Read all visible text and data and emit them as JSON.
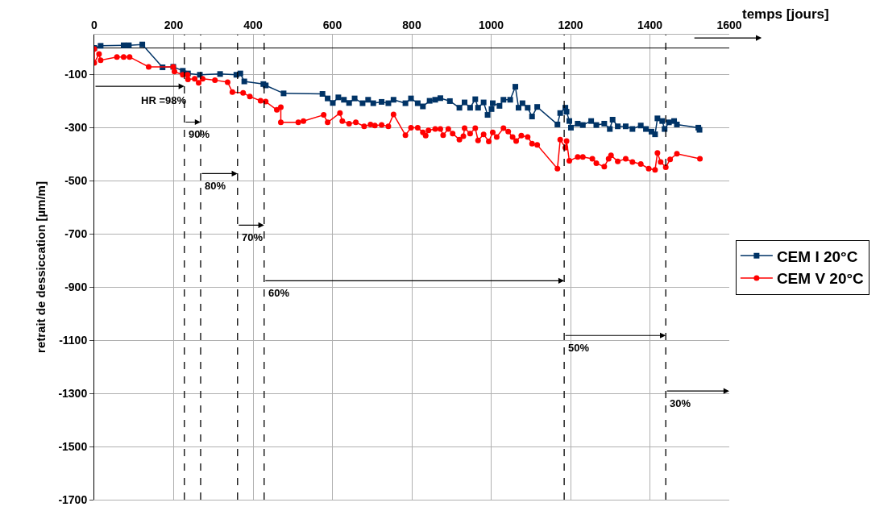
{
  "chart_data": {
    "type": "line",
    "xlabel": "temps [jours]",
    "ylabel": "retrait de dessiccation [µm/m]",
    "xlim": [
      0,
      1600
    ],
    "xticks": [
      0,
      200,
      400,
      600,
      800,
      1000,
      1200,
      1400,
      1600
    ],
    "ylim": [
      -1700,
      50
    ],
    "yticks": [
      -100,
      -300,
      -500,
      -700,
      -900,
      -1100,
      -1300,
      -1500,
      -1700
    ],
    "grid": true,
    "legend": "right",
    "line_style": "solid",
    "series": [
      {
        "name": "CEM I 20°C",
        "color": "#003366",
        "marker": "square",
        "x": [
          0,
          16,
          74,
          87,
          121,
          172,
          199,
          223,
          225,
          236,
          266,
          317,
          358,
          368,
          378,
          426,
          432,
          477,
          575,
          588,
          601,
          615,
          629,
          642,
          656,
          676,
          690,
          703,
          724,
          741,
          754,
          784,
          798,
          815,
          828,
          845,
          859,
          872,
          896,
          920,
          933,
          947,
          960,
          967,
          981,
          991,
          1001,
          1004,
          1021,
          1031,
          1048,
          1061,
          1069,
          1079,
          1092,
          1103,
          1116,
          1167,
          1174,
          1187,
          1190,
          1197,
          1201,
          1218,
          1231,
          1252,
          1265,
          1285,
          1299,
          1306,
          1319,
          1339,
          1356,
          1377,
          1390,
          1404,
          1413,
          1419,
          1431,
          1437,
          1448,
          1461,
          1468,
          1522,
          1525
        ],
        "values": [
          0,
          8,
          10,
          10,
          13,
          -73,
          -71,
          -86,
          -96,
          -96,
          -101,
          -98,
          -101,
          -96,
          -126,
          -136,
          -141,
          -171,
          -173,
          -190,
          -207,
          -186,
          -195,
          -207,
          -190,
          -208,
          -195,
          -208,
          -203,
          -208,
          -195,
          -208,
          -190,
          -208,
          -220,
          -199,
          -195,
          -189,
          -200,
          -225,
          -205,
          -225,
          -193,
          -225,
          -205,
          -252,
          -230,
          -208,
          -218,
          -195,
          -195,
          -146,
          -225,
          -208,
          -225,
          -258,
          -222,
          -288,
          -245,
          -225,
          -240,
          -275,
          -300,
          -285,
          -290,
          -275,
          -290,
          -285,
          -305,
          -270,
          -295,
          -295,
          -305,
          -292,
          -305,
          -315,
          -325,
          -265,
          -275,
          -305,
          -280,
          -275,
          -288,
          -300,
          -308
        ]
      },
      {
        "name": "CEM V 20°C",
        "color": "#ff0000",
        "marker": "circle",
        "x": [
          0,
          0,
          12,
          16,
          57,
          74,
          89,
          137,
          199,
          202,
          223,
          235,
          236,
          253,
          263,
          273,
          304,
          336,
          348,
          375,
          392,
          419,
          432,
          460,
          470,
          470,
          514,
          527,
          578,
          588,
          619,
          625,
          642,
          659,
          680,
          696,
          707,
          724,
          741,
          754,
          784,
          798,
          815,
          828,
          835,
          842,
          859,
          872,
          879,
          892,
          903,
          920,
          930,
          933,
          947,
          960,
          967,
          981,
          994,
          1004,
          1014,
          1031,
          1043,
          1054,
          1063,
          1076,
          1092,
          1103,
          1116,
          1167,
          1174,
          1187,
          1190,
          1197,
          1218,
          1231,
          1255,
          1265,
          1285,
          1296,
          1302,
          1319,
          1339,
          1356,
          1377,
          1397,
          1413,
          1419,
          1427,
          1440,
          1451,
          1468,
          1526
        ],
        "values": [
          -4,
          -56,
          -23,
          -46,
          -34,
          -34,
          -34,
          -71,
          -71,
          -89,
          -101,
          -101,
          -118,
          -116,
          -131,
          -116,
          -121,
          -129,
          -166,
          -169,
          -183,
          -199,
          -202,
          -233,
          -223,
          -280,
          -280,
          -275,
          -252,
          -280,
          -245,
          -275,
          -285,
          -280,
          -295,
          -288,
          -292,
          -290,
          -295,
          -250,
          -328,
          -300,
          -300,
          -318,
          -330,
          -310,
          -305,
          -305,
          -328,
          -305,
          -322,
          -345,
          -332,
          -302,
          -322,
          -302,
          -348,
          -325,
          -352,
          -318,
          -335,
          -302,
          -315,
          -335,
          -350,
          -330,
          -335,
          -360,
          -365,
          -454,
          -345,
          -375,
          -350,
          -425,
          -410,
          -410,
          -417,
          -434,
          -447,
          -417,
          -404,
          -427,
          -417,
          -429,
          -437,
          -454,
          -459,
          -395,
          -429,
          -449,
          -419,
          -398,
          -417
        ]
      }
    ],
    "ref_lines": [
      {
        "axis": "x",
        "value": 227,
        "line_style": "dashed",
        "color": "#000000"
      },
      {
        "axis": "x",
        "value": 268,
        "line_style": "dashed",
        "color": "#000000"
      },
      {
        "axis": "x",
        "value": 361,
        "line_style": "dashed",
        "color": "#000000"
      },
      {
        "axis": "x",
        "value": 428,
        "line_style": "dashed",
        "color": "#000000"
      },
      {
        "axis": "x",
        "value": 1184,
        "line_style": "dashed",
        "color": "#000000"
      },
      {
        "axis": "x",
        "value": 1440,
        "line_style": "dashed",
        "color": "#000000"
      }
    ],
    "annotations": [
      "HR =98%",
      {
        "text": "90%",
        "x": 227,
        "y": -279
      },
      {
        "text": "80%",
        "x": 268,
        "y": -473
      },
      {
        "text": "70%",
        "x": 361,
        "y": -667
      },
      {
        "text": "60%",
        "x": 428,
        "y": -876
      },
      {
        "text": "50%",
        "x": 1184,
        "y": -1082
      },
      {
        "text": "30%",
        "x": 1440,
        "y": -1291
      }
    ]
  }
}
